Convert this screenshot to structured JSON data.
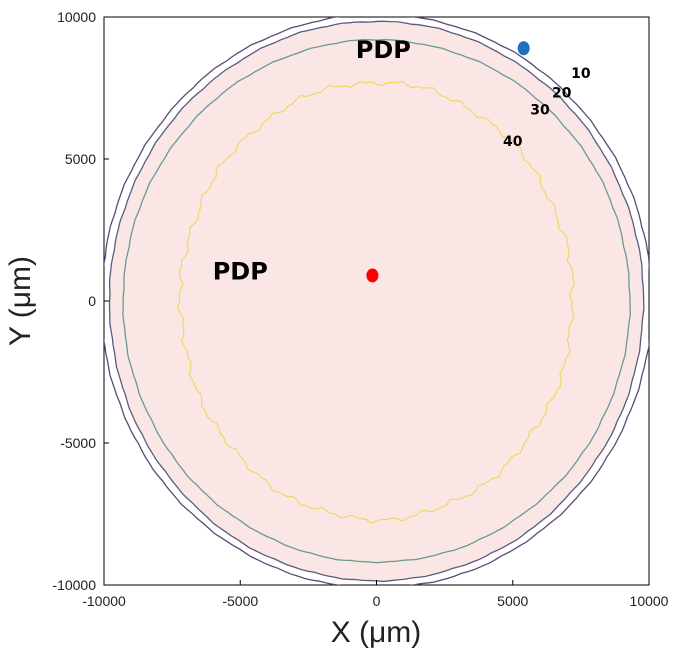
{
  "chart_data": {
    "type": "contour",
    "xlabel": "X (μm)",
    "ylabel": "Y (μm)",
    "xlim": [
      -10000,
      10000
    ],
    "ylim": [
      -10000,
      10000
    ],
    "x_ticks": [
      "-10000",
      "-5000",
      "0",
      "5000",
      "10000"
    ],
    "y_ticks": [
      "10000",
      "5000",
      "0",
      "-5000",
      "-10000"
    ],
    "x_tick_values": [
      -10000,
      -5000,
      0,
      5000,
      10000
    ],
    "y_tick_values": [
      10000,
      5000,
      0,
      -5000,
      -10000
    ],
    "grid": false,
    "contours": [
      {
        "level": "10",
        "color": "#5a4a78",
        "rx": 10100,
        "ry": 10100,
        "cx": 0,
        "cy": 0
      },
      {
        "level": "20",
        "color": "#5b5a82",
        "rx": 9800,
        "ry": 9850,
        "cx": 0,
        "cy": 0
      },
      {
        "level": "30",
        "color": "#6a9a90",
        "rx": 9300,
        "ry": 9200,
        "cx": 0,
        "cy": 0
      },
      {
        "level": "40",
        "color": "#ecd85a",
        "rx": 7200,
        "ry": 7700,
        "cx": 0,
        "cy": 0
      }
    ],
    "region": {
      "label": "PDP",
      "fill": "#fbe6e6",
      "rx": 9800,
      "ry": 9850
    },
    "labels": [
      {
        "text": "PDP",
        "x": 250,
        "y": 8800,
        "size": 24
      },
      {
        "text": "PDP",
        "x": -5000,
        "y": 1000,
        "size": 24
      },
      {
        "text": "10",
        "x": 7500,
        "y": 8000,
        "size": 14
      },
      {
        "text": "20",
        "x": 6800,
        "y": 7300,
        "size": 14
      },
      {
        "text": "30",
        "x": 6000,
        "y": 6700,
        "size": 14
      },
      {
        "text": "40",
        "x": 5000,
        "y": 5600,
        "size": 14
      }
    ],
    "points": [
      {
        "x": -150,
        "y": 900,
        "color": "#ff0000"
      },
      {
        "x": 5400,
        "y": 8900,
        "color": "#1f6fc0"
      }
    ]
  }
}
